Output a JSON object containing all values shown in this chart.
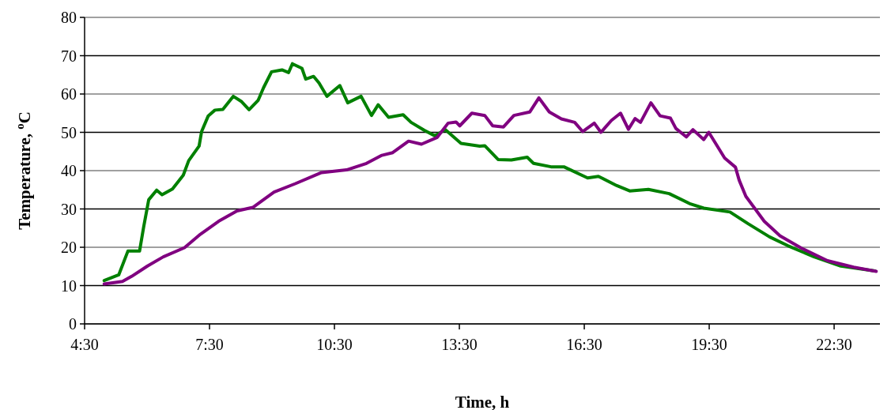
{
  "chart_data": {
    "type": "line",
    "xlabel": "Time, h",
    "ylabel": "Temperature, $^{o}$C",
    "xlim": [
      4.5,
      23.6
    ],
    "xticks": [
      {
        "value": 4.5,
        "label": "4:30"
      },
      {
        "value": 7.5,
        "label": "7:30"
      },
      {
        "value": 10.5,
        "label": "10:30"
      },
      {
        "value": 13.5,
        "label": "13:30"
      },
      {
        "value": 16.5,
        "label": "16:30"
      },
      {
        "value": 19.5,
        "label": "19:30"
      },
      {
        "value": 22.5,
        "label": "22:30"
      }
    ],
    "ylim": [
      0,
      80
    ],
    "yticks": [
      0,
      10,
      20,
      30,
      40,
      50,
      60,
      70,
      80
    ],
    "grid": "y",
    "line_style": "solid",
    "series": [
      {
        "color": "#008000",
        "x": [
          4.97,
          5.32,
          5.54,
          5.82,
          5.92,
          6.04,
          6.23,
          6.36,
          6.61,
          6.87,
          7.0,
          7.25,
          7.31,
          7.47,
          7.63,
          7.82,
          8.07,
          8.26,
          8.45,
          8.67,
          8.8,
          8.99,
          9.24,
          9.4,
          9.49,
          9.72,
          9.81,
          10.0,
          10.13,
          10.32,
          10.63,
          10.82,
          11.14,
          11.39,
          11.55,
          11.8,
          12.15,
          12.34,
          12.66,
          12.91,
          13.16,
          13.54,
          13.99,
          14.11,
          14.43,
          14.75,
          15.13,
          15.28,
          15.7,
          16.01,
          16.58,
          16.84,
          17.28,
          17.59,
          18.04,
          18.54,
          19.05,
          19.37,
          20.0,
          20.44,
          20.95,
          21.39,
          22.02,
          22.66,
          23.48
        ],
        "values": [
          11.3,
          12.8,
          19.0,
          19.0,
          25.4,
          32.4,
          34.9,
          33.7,
          35.2,
          38.8,
          42.6,
          46.4,
          50.2,
          54.3,
          55.8,
          56.0,
          59.4,
          58.1,
          55.9,
          58.4,
          61.7,
          65.8,
          66.3,
          65.6,
          67.9,
          66.7,
          63.9,
          64.6,
          62.9,
          59.4,
          62.2,
          57.7,
          59.4,
          54.4,
          57.2,
          53.9,
          54.6,
          52.6,
          50.5,
          49.1,
          50.7,
          47.1,
          46.4,
          46.5,
          42.9,
          42.8,
          43.5,
          41.9,
          41.0,
          41.0,
          38.1,
          38.5,
          36.1,
          34.7,
          35.1,
          34.0,
          31.3,
          30.2,
          29.2,
          26.1,
          22.7,
          20.4,
          17.5,
          15.1,
          13.8
        ]
      },
      {
        "color": "#800080",
        "x": [
          4.97,
          5.41,
          5.63,
          6.01,
          6.39,
          6.9,
          7.28,
          7.72,
          8.16,
          8.54,
          9.05,
          9.56,
          10.19,
          10.79,
          11.27,
          11.64,
          11.9,
          12.28,
          12.59,
          12.97,
          13.23,
          13.42,
          13.51,
          13.8,
          14.11,
          14.3,
          14.56,
          14.81,
          15.19,
          15.41,
          15.66,
          15.95,
          16.27,
          16.46,
          16.74,
          16.9,
          17.15,
          17.37,
          17.56,
          17.72,
          17.85,
          18.1,
          18.32,
          18.57,
          18.7,
          18.95,
          19.11,
          19.37,
          19.49,
          19.87,
          20.13,
          20.22,
          20.38,
          20.82,
          21.2,
          21.71,
          22.34,
          22.97,
          23.51
        ],
        "values": [
          10.4,
          11.1,
          12.4,
          15.1,
          17.5,
          19.9,
          23.4,
          26.8,
          29.5,
          30.4,
          34.4,
          36.6,
          39.5,
          40.2,
          41.9,
          44.0,
          44.7,
          47.7,
          46.9,
          48.7,
          52.4,
          52.7,
          51.7,
          55.0,
          54.4,
          51.7,
          51.4,
          54.4,
          55.3,
          59.0,
          55.3,
          53.5,
          52.6,
          50.2,
          52.4,
          50.0,
          53.1,
          55.0,
          50.8,
          53.6,
          52.6,
          57.7,
          54.3,
          53.7,
          51.0,
          48.8,
          50.7,
          48.1,
          50.0,
          43.3,
          40.9,
          37.5,
          33.3,
          26.8,
          23.0,
          19.8,
          16.5,
          14.8,
          13.7
        ]
      }
    ]
  }
}
